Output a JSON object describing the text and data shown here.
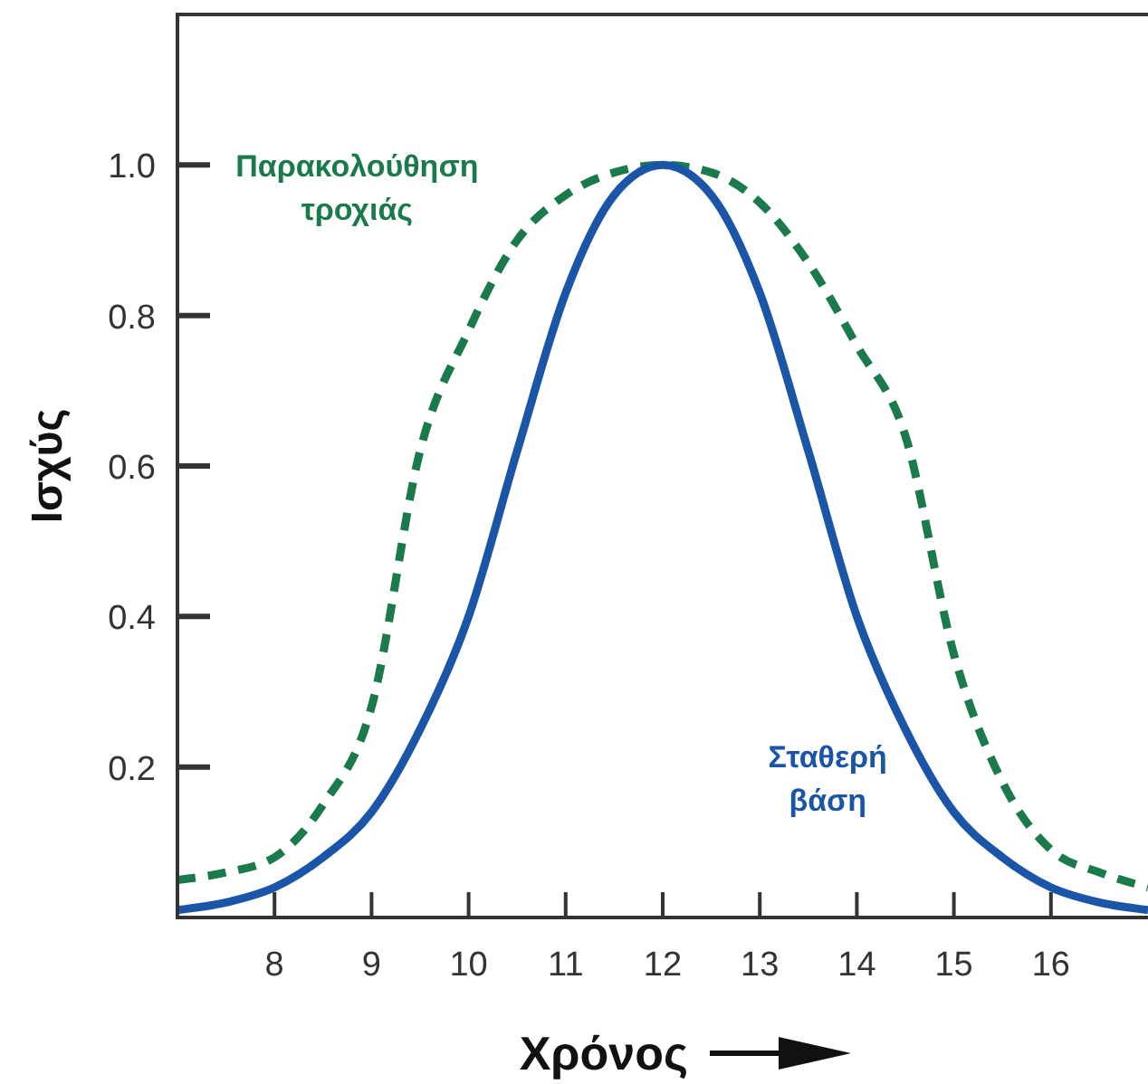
{
  "chart_data": {
    "type": "line",
    "xlabel": "Χρόνος",
    "ylabel": "Ισχύς",
    "xlim": [
      7,
      17
    ],
    "ylim": [
      0,
      1.2
    ],
    "xticks": [
      8,
      9,
      10,
      11,
      12,
      13,
      14,
      15,
      16
    ],
    "yticks": [
      {
        "value": 0.2,
        "label": "0.2"
      },
      {
        "value": 0.4,
        "label": "0.4"
      },
      {
        "value": 0.6,
        "label": "0.6"
      },
      {
        "value": 0.8,
        "label": "0.8"
      },
      {
        "value": 1,
        "label": "1.0"
      }
    ],
    "grid": false,
    "x": [
      7,
      7.5,
      8,
      8.5,
      9,
      9.5,
      10,
      10.5,
      11,
      11.5,
      12,
      12.5,
      13,
      13.5,
      14,
      14.5,
      15,
      15.5,
      16,
      16.5,
      17
    ],
    "series": [
      {
        "name": "Παρακολούθηση τροχιάς",
        "color": "#1a7a4a",
        "line_style": "dashed",
        "values": [
          0.05,
          0.06,
          0.08,
          0.15,
          0.28,
          0.62,
          0.78,
          0.9,
          0.96,
          0.99,
          1.0,
          0.99,
          0.95,
          0.87,
          0.76,
          0.64,
          0.35,
          0.18,
          0.09,
          0.06,
          0.04
        ]
      },
      {
        "name": "Σταθερή βάση",
        "color": "#1a55a8",
        "line_style": "solid",
        "values": [
          0.01,
          0.02,
          0.04,
          0.08,
          0.14,
          0.25,
          0.4,
          0.62,
          0.83,
          0.96,
          1.0,
          0.96,
          0.83,
          0.62,
          0.4,
          0.25,
          0.14,
          0.08,
          0.04,
          0.02,
          0.01
        ]
      }
    ]
  }
}
